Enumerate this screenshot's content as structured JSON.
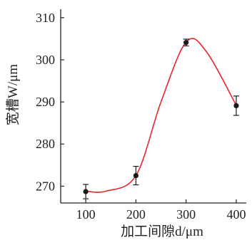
{
  "chart_data": {
    "type": "scatter",
    "title": "",
    "xlabel": "加工间隙d/μm",
    "ylabel": "宽槽W/μm",
    "x_ticks": [
      100,
      200,
      300,
      400
    ],
    "y_ticks": [
      270,
      280,
      290,
      300,
      310
    ],
    "xlim": [
      50,
      420
    ],
    "ylim": [
      266,
      312
    ],
    "grid": false,
    "legend": "none",
    "series": [
      {
        "points": [
          {
            "x": 100,
            "y": 268.7,
            "err": 1.7
          },
          {
            "x": 200,
            "y": 272.5,
            "err": 2.2
          },
          {
            "x": 300,
            "y": 304.1,
            "err": 0.8
          },
          {
            "x": 400,
            "y": 289.1,
            "err": 2.3
          }
        ]
      }
    ],
    "fit_curve": {
      "color": "#e8262a",
      "points": [
        {
          "x": 100,
          "y": 268.8
        },
        {
          "x": 140,
          "y": 268.8
        },
        {
          "x": 200,
          "y": 272.5
        },
        {
          "x": 250,
          "y": 290.0
        },
        {
          "x": 300,
          "y": 304.2
        },
        {
          "x": 340,
          "y": 302.0
        },
        {
          "x": 400,
          "y": 289.2
        }
      ]
    },
    "colors": {
      "marker": "#1a1a1a",
      "axis": "#222222",
      "curve": "#e8262a"
    }
  }
}
